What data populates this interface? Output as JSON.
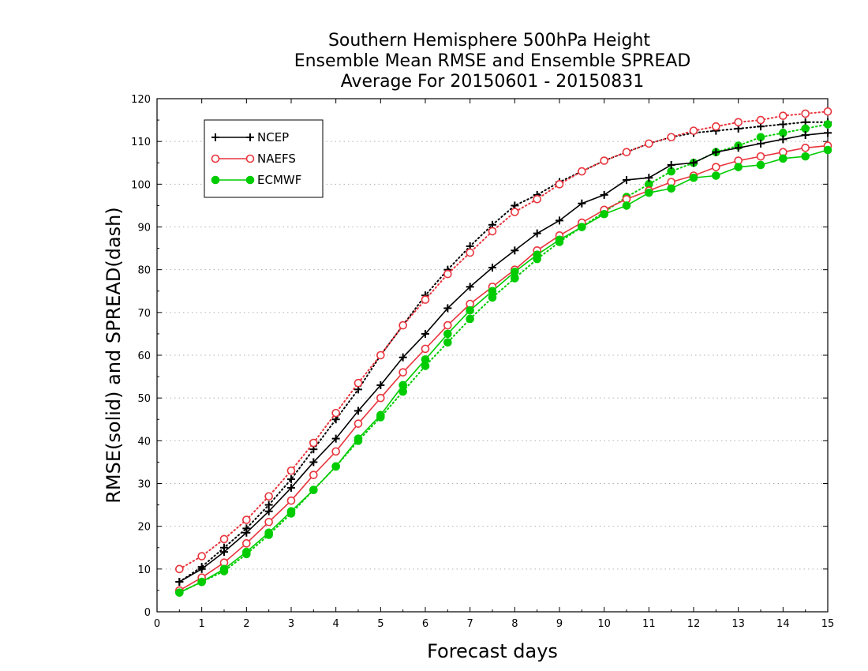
{
  "chart_data": {
    "type": "line",
    "title": [
      "Southern Hemisphere 500hPa Height",
      "Ensemble Mean RMSE and Ensemble SPREAD",
      "Average For 20150601 - 20150831"
    ],
    "xlabel": "Forecast days",
    "ylabel": "RMSE(solid) and SPREAD(dash)",
    "xlim": [
      0,
      15
    ],
    "ylim": [
      0,
      120
    ],
    "xticks": [
      0,
      1,
      2,
      3,
      4,
      5,
      6,
      7,
      8,
      9,
      10,
      11,
      12,
      13,
      14,
      15
    ],
    "yticks": [
      0,
      10,
      20,
      30,
      40,
      50,
      60,
      70,
      80,
      90,
      100,
      110,
      120
    ],
    "x_tick_labels": [
      "0",
      "1",
      "2",
      "3",
      "4",
      "5",
      "6",
      "7",
      "8",
      "9",
      "10",
      "11",
      "12",
      "13",
      "14",
      "15"
    ],
    "y_tick_labels": [
      "0",
      "10",
      "20",
      "30",
      "40",
      "50",
      "60",
      "70",
      "80",
      "90",
      "100",
      "110",
      "120"
    ],
    "grid": true,
    "legend_position": "top-left",
    "x": [
      0.5,
      1,
      1.5,
      2,
      2.5,
      3,
      3.5,
      4,
      4.5,
      5,
      5.5,
      6,
      6.5,
      7,
      7.5,
      8,
      8.5,
      9,
      9.5,
      10,
      10.5,
      11,
      11.5,
      12,
      12.5,
      13,
      13.5,
      14,
      14.5,
      15
    ],
    "series": [
      {
        "name": "NCEP",
        "kind": "RMSE",
        "style": "solid",
        "marker": "plus",
        "color": "#000000",
        "values": [
          7,
          10,
          14,
          18.5,
          23.5,
          29,
          35,
          40.5,
          47,
          53,
          59.5,
          65,
          71,
          76,
          80.5,
          84.5,
          88.5,
          91.5,
          95.5,
          97.5,
          101,
          101.5,
          104.5,
          105,
          107.5,
          108.5,
          109.5,
          110.5,
          111.5,
          112
        ]
      },
      {
        "name": "NAEFS",
        "kind": "RMSE",
        "style": "solid",
        "marker": "open-circle",
        "color": "#e8343c",
        "values": [
          5,
          8,
          11.5,
          16,
          21,
          26,
          32,
          37.5,
          44,
          50,
          56,
          61.5,
          67,
          72,
          76,
          80,
          84.5,
          88,
          91,
          94,
          96.5,
          98.5,
          100.5,
          102,
          104,
          105.5,
          106.5,
          107.5,
          108.5,
          109
        ]
      },
      {
        "name": "ECMWF",
        "kind": "RMSE",
        "style": "solid",
        "marker": "filled-circle",
        "color": "#00cc00",
        "values": [
          4.5,
          7,
          10,
          14,
          18.5,
          23.5,
          28.5,
          34,
          40.5,
          46,
          53,
          59,
          65,
          70.5,
          75,
          79.5,
          83.5,
          87,
          90,
          93,
          95,
          98,
          99,
          101.5,
          102,
          104,
          104.5,
          106,
          106.5,
          108
        ]
      },
      {
        "name": "NCEP",
        "kind": "SPREAD",
        "style": "dotted",
        "marker": "plus",
        "color": "#000000",
        "values": [
          7,
          10.5,
          15,
          19.5,
          25,
          31,
          38,
          45,
          52,
          60,
          67,
          74,
          80,
          85.5,
          90.5,
          95,
          97.5,
          100.5,
          103,
          105.5,
          107.5,
          109.5,
          111,
          112,
          112.5,
          113,
          113.5,
          114,
          114.5,
          114.5
        ]
      },
      {
        "name": "NAEFS",
        "kind": "SPREAD",
        "style": "dotted",
        "marker": "open-circle",
        "color": "#e8343c",
        "values": [
          10,
          13,
          17,
          21.5,
          27,
          33,
          39.5,
          46.5,
          53.5,
          60,
          67,
          73,
          79,
          84,
          89,
          93.5,
          96.5,
          100,
          103,
          105.5,
          107.5,
          109.5,
          111,
          112.5,
          113.5,
          114.5,
          115,
          116,
          116.5,
          117
        ]
      },
      {
        "name": "ECMWF",
        "kind": "SPREAD",
        "style": "dotted",
        "marker": "filled-circle",
        "color": "#00cc00",
        "values": [
          4.5,
          7,
          9.5,
          13.5,
          18,
          23,
          28.5,
          34,
          40,
          45.5,
          51.5,
          57.5,
          63,
          68.5,
          73.5,
          78,
          82.5,
          86.5,
          90,
          93.5,
          97,
          100,
          103,
          105,
          107.5,
          109,
          111,
          112,
          113,
          114
        ]
      }
    ],
    "legend": [
      {
        "label": "NCEP",
        "marker": "plus",
        "color": "#000000"
      },
      {
        "label": "NAEFS",
        "marker": "open-circle",
        "color": "#e8343c"
      },
      {
        "label": "ECMWF",
        "marker": "filled-circle",
        "color": "#00cc00"
      }
    ]
  }
}
